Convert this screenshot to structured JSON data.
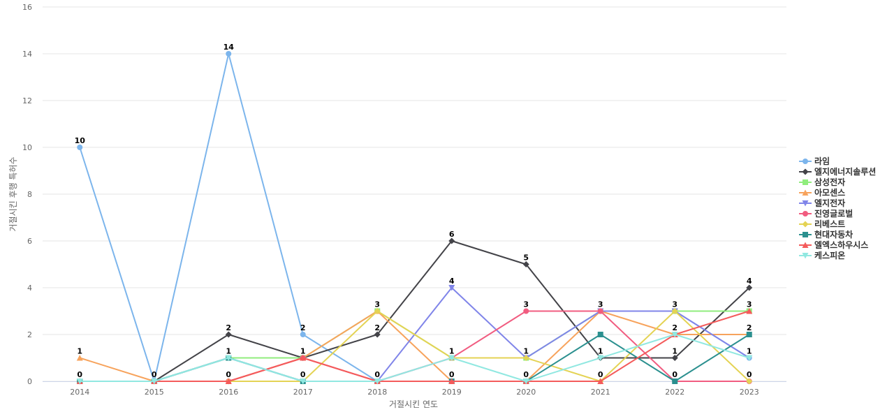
{
  "chart_data": {
    "type": "line",
    "xlabel": "거절시킨 연도",
    "ylabel": "거절시킨 후행 특허수",
    "x": [
      "2014",
      "2015",
      "2016",
      "2017",
      "2018",
      "2019",
      "2020",
      "2021",
      "2022",
      "2023"
    ],
    "ylim": [
      0,
      16
    ],
    "yticks": [
      0,
      2,
      4,
      6,
      8,
      10,
      12,
      14,
      16
    ],
    "grid": true,
    "legend_position": "right",
    "series": [
      {
        "name": "라임",
        "color": "#7cb5ec",
        "marker": "circle",
        "values": [
          10,
          0,
          14,
          2,
          0,
          1,
          1,
          3,
          3,
          1
        ],
        "labeled": true
      },
      {
        "name": "엘지에너지솔루션",
        "color": "#434348",
        "marker": "diamond",
        "values": [
          0,
          0,
          2,
          1,
          2,
          6,
          5,
          1,
          1,
          4
        ],
        "labeled": true
      },
      {
        "name": "삼성전자",
        "color": "#90ed7d",
        "marker": "square",
        "values": [
          0,
          0,
          1,
          1,
          3,
          1,
          1,
          3,
          3,
          3
        ],
        "labeled": true
      },
      {
        "name": "아모센스",
        "color": "#f7a35c",
        "marker": "triangle",
        "values": [
          1,
          0,
          0,
          1,
          3,
          0,
          0,
          3,
          2,
          2
        ],
        "labeled": true
      },
      {
        "name": "엘지전자",
        "color": "#8085e9",
        "marker": "triangle-down",
        "values": [
          0,
          0,
          1,
          0,
          0,
          4,
          1,
          3,
          3,
          1
        ],
        "labeled": true
      },
      {
        "name": "진영글로벌",
        "color": "#f15c80",
        "marker": "circle",
        "values": [
          0,
          0,
          0,
          1,
          0,
          1,
          3,
          3,
          0,
          0
        ],
        "labeled": true
      },
      {
        "name": "리베스트",
        "color": "#e4d354",
        "marker": "diamond",
        "values": [
          0,
          0,
          0,
          0,
          3,
          1,
          1,
          0,
          3,
          0
        ],
        "labeled": false
      },
      {
        "name": "현대자동차",
        "color": "#2b908f",
        "marker": "square",
        "values": [
          0,
          0,
          1,
          0,
          0,
          0,
          0,
          2,
          0,
          2
        ],
        "labeled": false
      },
      {
        "name": "엘엑스하우시스",
        "color": "#f45b5b",
        "marker": "triangle",
        "values": [
          0,
          0,
          0,
          1,
          0,
          0,
          0,
          0,
          2,
          3
        ],
        "labeled": false
      },
      {
        "name": "케스피온",
        "color": "#91e8e1",
        "marker": "triangle-down",
        "values": [
          0,
          0,
          1,
          0,
          0,
          1,
          0,
          1,
          2,
          1
        ],
        "labeled": false
      }
    ],
    "data_labels": [
      {
        "x": "2014",
        "y": 10,
        "text": "10"
      },
      {
        "x": "2014",
        "y": 1,
        "text": "1"
      },
      {
        "x": "2014",
        "y": 0,
        "text": "0"
      },
      {
        "x": "2015",
        "y": 0,
        "text": "0"
      },
      {
        "x": "2016",
        "y": 14,
        "text": "14"
      },
      {
        "x": "2016",
        "y": 2,
        "text": "2"
      },
      {
        "x": "2016",
        "y": 1,
        "text": "1"
      },
      {
        "x": "2016",
        "y": 0,
        "text": "0"
      },
      {
        "x": "2017",
        "y": 2,
        "text": "2"
      },
      {
        "x": "2017",
        "y": 1,
        "text": "1"
      },
      {
        "x": "2017",
        "y": 0,
        "text": "0"
      },
      {
        "x": "2018",
        "y": 3,
        "text": "3"
      },
      {
        "x": "2018",
        "y": 2,
        "text": "2"
      },
      {
        "x": "2018",
        "y": 0,
        "text": "0"
      },
      {
        "x": "2019",
        "y": 6,
        "text": "6"
      },
      {
        "x": "2019",
        "y": 4,
        "text": "4"
      },
      {
        "x": "2019",
        "y": 1,
        "text": "1"
      },
      {
        "x": "2019",
        "y": 0,
        "text": "0"
      },
      {
        "x": "2020",
        "y": 5,
        "text": "5"
      },
      {
        "x": "2020",
        "y": 3,
        "text": "3"
      },
      {
        "x": "2020",
        "y": 1,
        "text": "1"
      },
      {
        "x": "2020",
        "y": 0,
        "text": "0"
      },
      {
        "x": "2021",
        "y": 3,
        "text": "3"
      },
      {
        "x": "2021",
        "y": 1,
        "text": "1"
      },
      {
        "x": "2021",
        "y": 0,
        "text": "0"
      },
      {
        "x": "2022",
        "y": 3,
        "text": "3"
      },
      {
        "x": "2022",
        "y": 2,
        "text": "2"
      },
      {
        "x": "2022",
        "y": 1,
        "text": "1"
      },
      {
        "x": "2022",
        "y": 0,
        "text": "0"
      },
      {
        "x": "2023",
        "y": 4,
        "text": "4"
      },
      {
        "x": "2023",
        "y": 3,
        "text": "3"
      },
      {
        "x": "2023",
        "y": 2,
        "text": "2"
      },
      {
        "x": "2023",
        "y": 1,
        "text": "1"
      },
      {
        "x": "2023",
        "y": 0,
        "text": "0"
      }
    ]
  }
}
